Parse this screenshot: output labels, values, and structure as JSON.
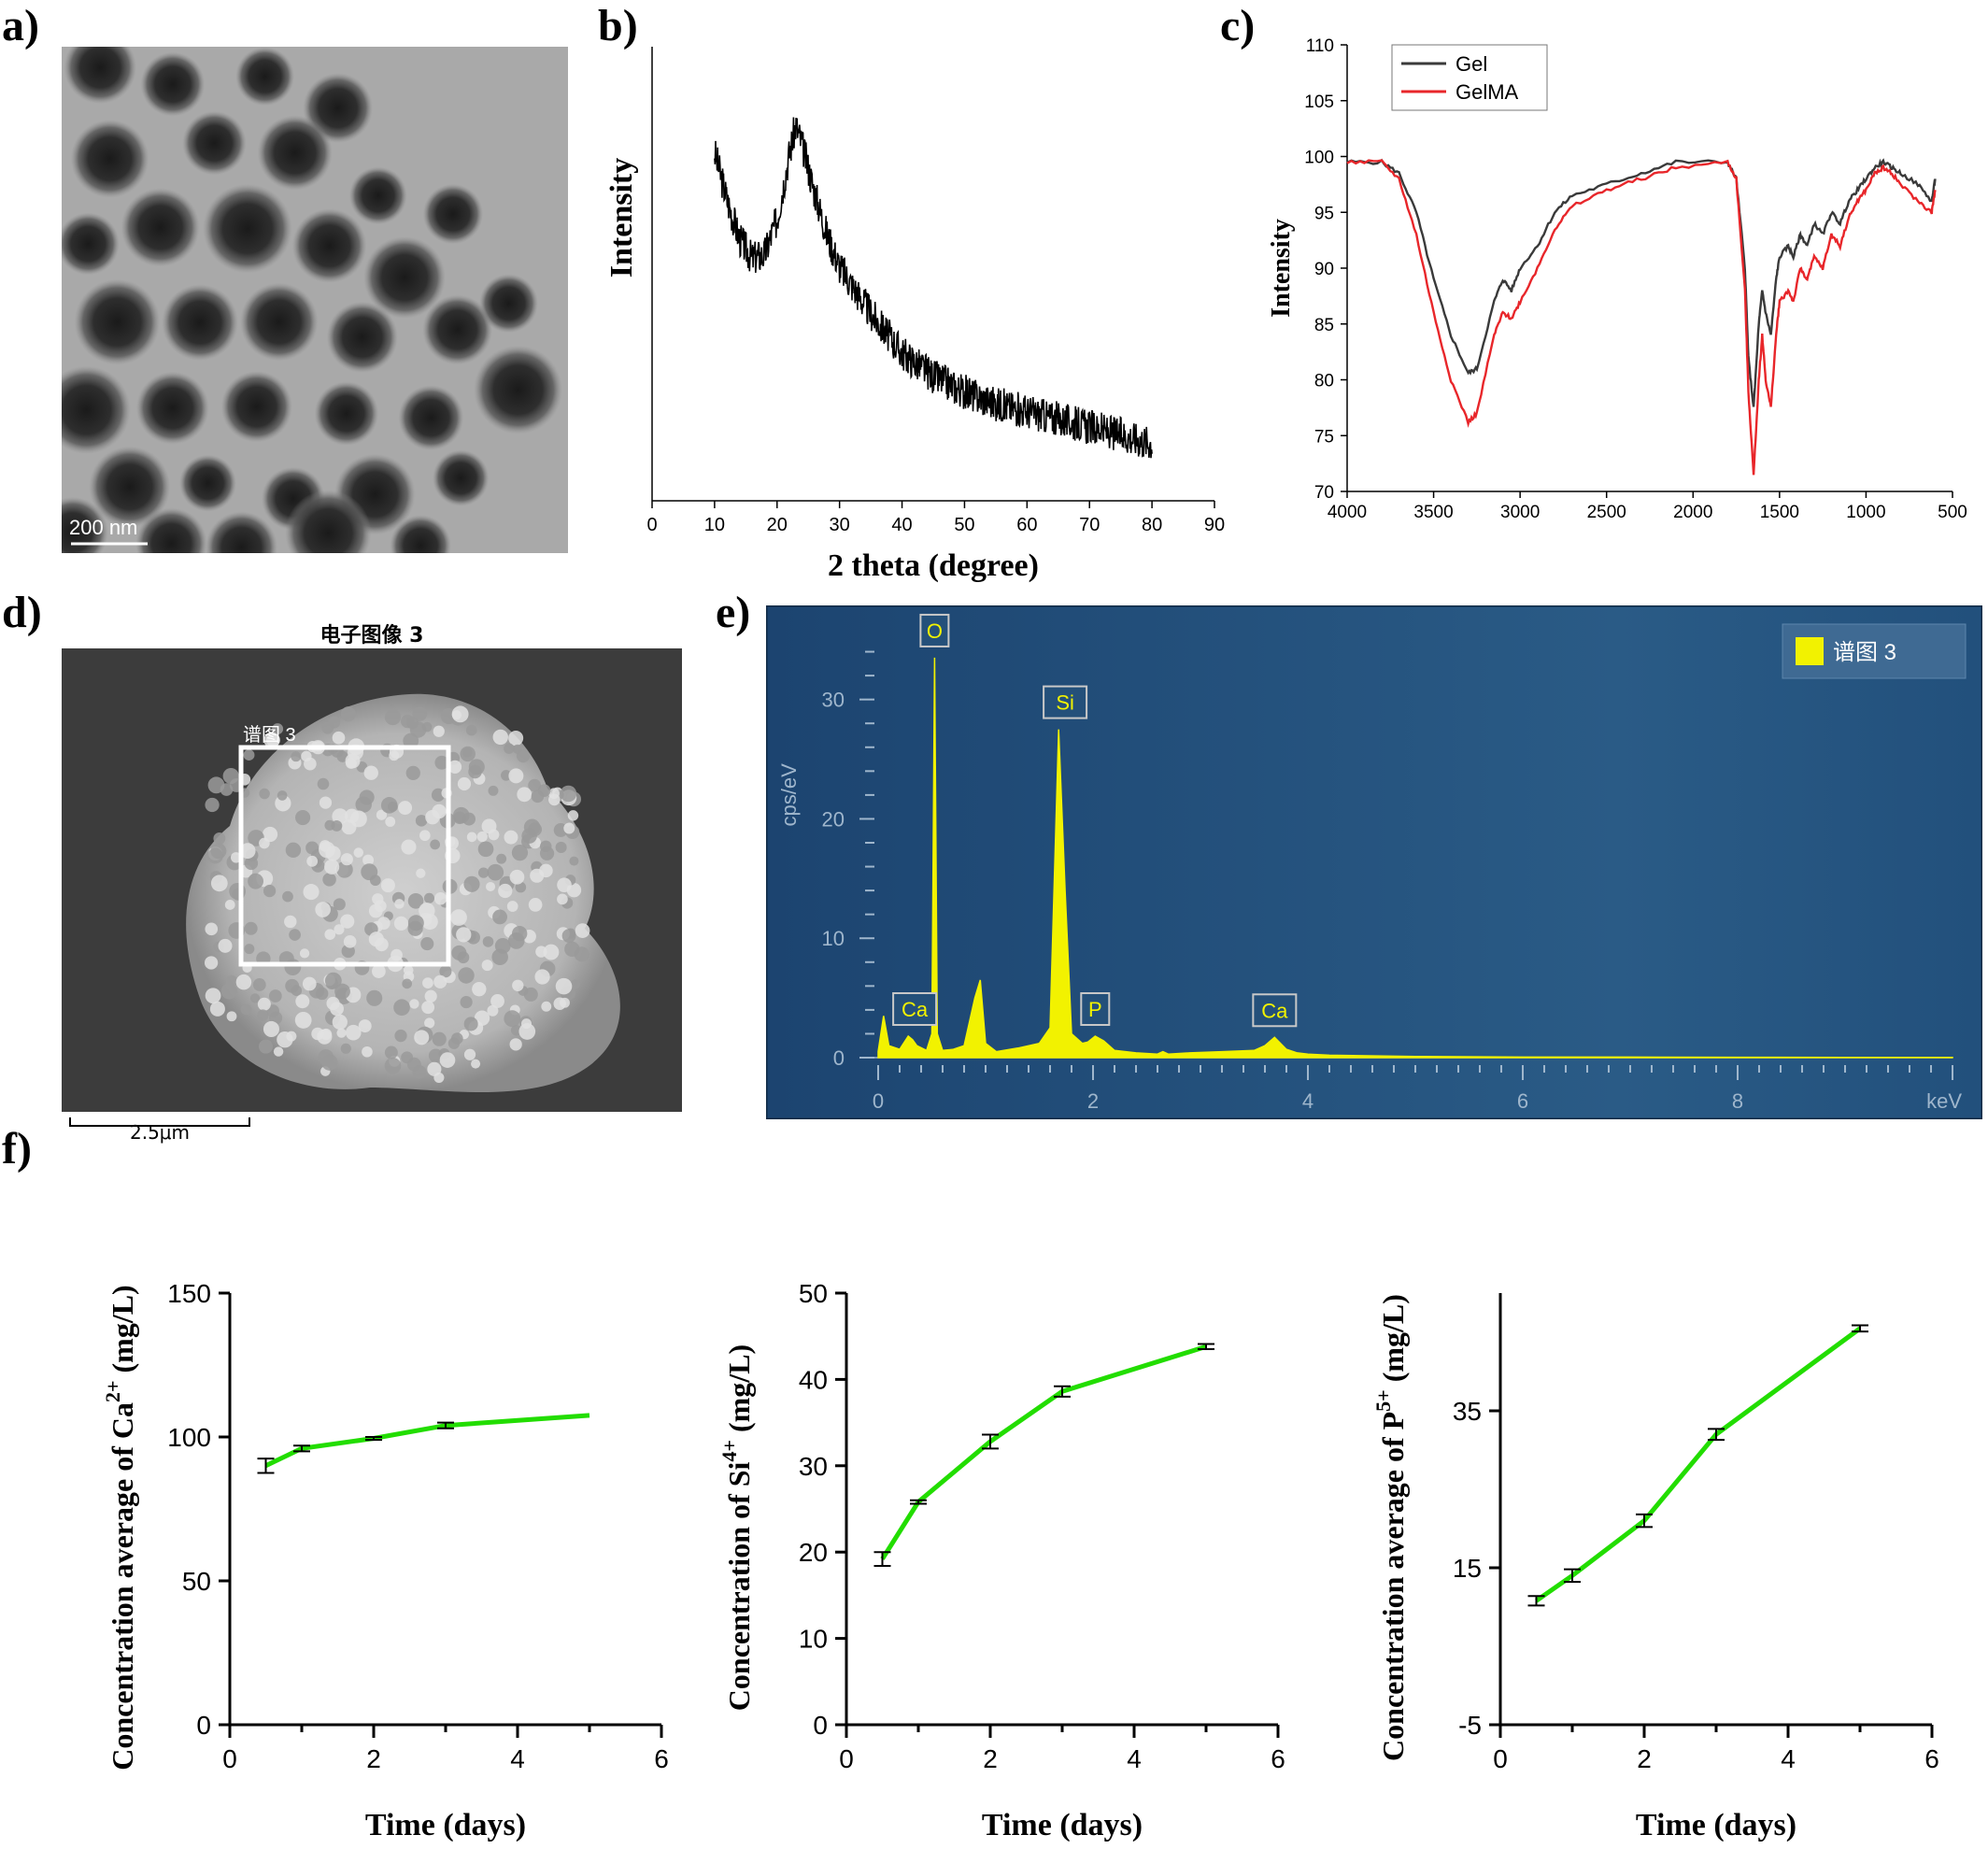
{
  "panels": {
    "a": {
      "label": "a)",
      "scale_bar": "200 nm"
    },
    "b": {
      "label": "b)"
    },
    "c": {
      "label": "c)"
    },
    "d": {
      "label": "d)",
      "image_title": "电子图像 3",
      "region_label": "谱图 3",
      "scale_bar": "2.5μm"
    },
    "e": {
      "label": "e)"
    },
    "f": {
      "label": "f)"
    }
  },
  "colors": {
    "gel": "#3a3a3a",
    "gelma": "#e8262a",
    "green": "#22dd00",
    "eds_bg": "#1e4a73",
    "eds_peak": "#f2f200"
  },
  "chart_data": [
    {
      "id": "b",
      "type": "line",
      "title": "",
      "xlabel": "2 theta (degree)",
      "ylabel": "Intensity",
      "xlim": [
        0,
        90
      ],
      "xticks": [
        0,
        10,
        20,
        30,
        40,
        50,
        60,
        70,
        80,
        90
      ],
      "series": [
        {
          "x": [
            10,
            12,
            14,
            16,
            18,
            20,
            22,
            23,
            24,
            26,
            28,
            30,
            35,
            40,
            45,
            50,
            55,
            60,
            65,
            70,
            75,
            80
          ],
          "y": [
            0.84,
            0.72,
            0.62,
            0.57,
            0.58,
            0.67,
            0.84,
            0.91,
            0.86,
            0.74,
            0.63,
            0.55,
            0.43,
            0.33,
            0.27,
            0.23,
            0.2,
            0.18,
            0.16,
            0.14,
            0.12,
            0.1
          ]
        }
      ]
    },
    {
      "id": "c",
      "type": "line",
      "title": "",
      "xlabel": "",
      "ylabel": "Intensity",
      "xlim": [
        4000,
        500
      ],
      "ylim": [
        70,
        110
      ],
      "xticks": [
        4000,
        3500,
        3000,
        2500,
        2000,
        1500,
        1000,
        500
      ],
      "yticks": [
        70,
        75,
        80,
        85,
        90,
        95,
        100,
        105,
        110
      ],
      "legend": "top-left",
      "series": [
        {
          "name": "Gel",
          "color": "#3a3a3a",
          "x": [
            4000,
            3800,
            3700,
            3600,
            3500,
            3400,
            3300,
            3250,
            3150,
            3100,
            3050,
            3000,
            2900,
            2800,
            2700,
            2500,
            2300,
            2100,
            1800,
            1750,
            1700,
            1680,
            1650,
            1620,
            1600,
            1580,
            1550,
            1520,
            1500,
            1450,
            1420,
            1380,
            1340,
            1300,
            1250,
            1200,
            1150,
            1100,
            1050,
            1000,
            950,
            900,
            850,
            800,
            700,
            620,
            600
          ],
          "y": [
            99.5,
            99.5,
            98.5,
            95,
            89,
            84,
            80.6,
            81,
            87,
            89,
            88,
            90,
            92,
            95,
            96.5,
            97.5,
            98.5,
            99.5,
            99.5,
            98,
            90,
            82,
            77.5,
            85,
            88,
            86,
            84,
            89,
            91,
            92,
            91,
            93,
            92,
            94,
            93,
            95,
            94,
            96,
            97,
            98,
            99,
            99.5,
            99,
            98.5,
            97.5,
            96,
            98
          ]
        },
        {
          "name": "GelMA",
          "color": "#e8262a",
          "x": [
            4000,
            3800,
            3700,
            3600,
            3500,
            3400,
            3300,
            3250,
            3150,
            3100,
            3050,
            3000,
            2900,
            2800,
            2700,
            2500,
            2300,
            2100,
            1800,
            1750,
            1700,
            1680,
            1650,
            1620,
            1600,
            1580,
            1550,
            1520,
            1500,
            1450,
            1420,
            1380,
            1340,
            1300,
            1250,
            1200,
            1150,
            1100,
            1050,
            1000,
            950,
            900,
            850,
            800,
            700,
            620,
            600
          ],
          "y": [
            99.5,
            99.5,
            98,
            93,
            86,
            80,
            76.2,
            77,
            84,
            86,
            85.5,
            87,
            90,
            93.5,
            95.5,
            97,
            98,
            99,
            99.5,
            98,
            88,
            79,
            71.5,
            80,
            84,
            80,
            77.5,
            84,
            87,
            88,
            87,
            90,
            89,
            91,
            90,
            93,
            92,
            94.5,
            96,
            97,
            98.5,
            99,
            98.5,
            97.5,
            96,
            95,
            97
          ]
        }
      ]
    },
    {
      "id": "e",
      "type": "area",
      "title": "",
      "xlabel": "keV",
      "ylabel": "cps/eV",
      "xlim": [
        0,
        10
      ],
      "ylim": [
        0,
        36
      ],
      "xticks": [
        0,
        2,
        4,
        6,
        8
      ],
      "yticks": [
        0,
        10,
        20,
        30
      ],
      "legend": "top-right",
      "series": [
        {
          "name": "谱图 3",
          "color": "#f2f200",
          "x": [
            0,
            0.05,
            0.1,
            0.2,
            0.28,
            0.32,
            0.36,
            0.45,
            0.5,
            0.525,
            0.55,
            0.6,
            0.7,
            0.8,
            0.9,
            0.95,
            1.0,
            1.1,
            1.3,
            1.5,
            1.6,
            1.68,
            1.74,
            1.8,
            1.9,
            1.95,
            2.02,
            2.1,
            2.2,
            2.4,
            2.6,
            2.65,
            2.7,
            2.9,
            3.2,
            3.5,
            3.6,
            3.69,
            3.8,
            3.9,
            4.0,
            4.2,
            5.0,
            6.0,
            7.0,
            8.0,
            9.0,
            10.0
          ],
          "y": [
            0.5,
            3.5,
            1,
            0.7,
            1.8,
            1.5,
            1,
            0.6,
            2,
            33.5,
            2,
            0.6,
            0.7,
            1,
            5,
            6.5,
            1.2,
            0.5,
            0.8,
            1.2,
            2.5,
            27.5,
            14,
            2,
            1.2,
            1.3,
            1.8,
            1.4,
            0.6,
            0.4,
            0.3,
            0.5,
            0.3,
            0.4,
            0.5,
            0.6,
            1,
            1.7,
            0.7,
            0.4,
            0.3,
            0.2,
            0.1,
            0.05,
            0.05,
            0.03,
            0.02,
            0.02
          ]
        }
      ],
      "annotations": [
        {
          "label": "O",
          "x": 0.525,
          "y": 33.5
        },
        {
          "label": "Si",
          "x": 1.74,
          "y": 27.5
        },
        {
          "label": "Ca",
          "x": 0.34,
          "y": 1.8
        },
        {
          "label": "P",
          "x": 2.02,
          "y": 1.8
        },
        {
          "label": "Ca",
          "x": 3.69,
          "y": 1.7
        }
      ]
    },
    {
      "id": "f1",
      "type": "line",
      "title": "",
      "xlabel": "Time (days)",
      "ylabel_main": "Concentration average of Ca",
      "ylabel_sup": "2+",
      "ylabel_unit": "(mg/L)",
      "xlim": [
        0,
        6
      ],
      "ylim": [
        0,
        150
      ],
      "xticks": [
        0,
        2,
        4,
        6
      ],
      "yticks": [
        0,
        50,
        100,
        150
      ],
      "series": [
        {
          "x": [
            0.5,
            1,
            2,
            3,
            5
          ],
          "y": [
            90,
            96,
            99.5,
            104,
            107.5
          ],
          "err": [
            2.5,
            1,
            0.5,
            1,
            0
          ]
        }
      ]
    },
    {
      "id": "f2",
      "type": "line",
      "title": "",
      "xlabel": "Time (days)",
      "ylabel_main": "Concentration  of Si",
      "ylabel_sup": "4+",
      "ylabel_unit": "(mg/L)",
      "xlim": [
        0,
        6
      ],
      "ylim": [
        0,
        50
      ],
      "xticks": [
        0,
        2,
        4,
        6
      ],
      "yticks": [
        0,
        10,
        20,
        30,
        40,
        50
      ],
      "series": [
        {
          "x": [
            0.5,
            1,
            2,
            3,
            5
          ],
          "y": [
            19.2,
            25.8,
            32.8,
            38.6,
            43.8
          ],
          "err": [
            0.8,
            0.2,
            0.8,
            0.6,
            0.3
          ]
        }
      ]
    },
    {
      "id": "f3",
      "type": "line",
      "title": "",
      "xlabel": "Time (days)",
      "ylabel_main": "Concentration average of P",
      "ylabel_sup": "5+",
      "ylabel_unit": "(mg/L)",
      "xlim": [
        0,
        6
      ],
      "ylim": [
        -5,
        50
      ],
      "xticks": [
        0,
        2,
        4,
        6
      ],
      "yticks": [
        -5,
        15,
        35
      ],
      "series": [
        {
          "x": [
            0.5,
            1,
            2,
            3,
            5
          ],
          "y": [
            10.8,
            14,
            21,
            32,
            45.5
          ],
          "err": [
            0.6,
            0.8,
            0.8,
            0.7,
            0.4
          ]
        }
      ]
    }
  ]
}
